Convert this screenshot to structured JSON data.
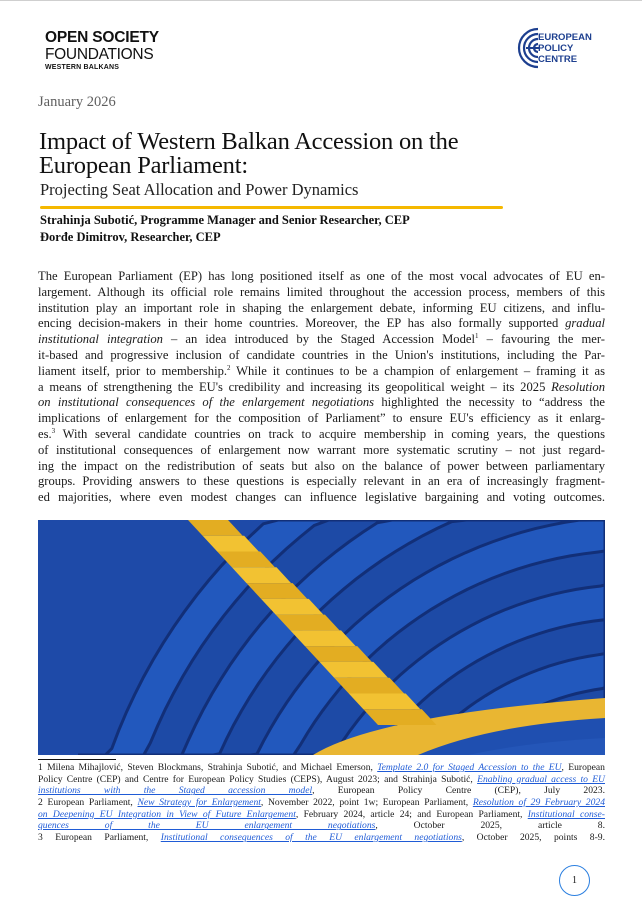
{
  "logos": {
    "osf": {
      "line1": "OPEN SOCIETY",
      "line2": "FOUNDATIONS",
      "line3": "WESTERN BALKANS"
    },
    "epc": {
      "line1": "EUROPEAN",
      "line2": "POLICY",
      "line3": "CENTRE",
      "color": "#1d3f8f"
    }
  },
  "date": "January 2026",
  "title": {
    "line1": "Impact of Western Balkan Accession on the",
    "line2": "European Parliament:"
  },
  "subtitle": "Projecting Seat Allocation and Power Dynamics",
  "accent_color": "#f5b800",
  "authors": [
    "Strahinja Subotić, Programme Manager and Senior Researcher, CEP",
    "Đorđe Dimitrov, Researcher, CEP"
  ],
  "body_lines": [
    [
      {
        "t": "The European Parliament (EP) has long positioned itself as one of the most vocal advocates of EU en-"
      }
    ],
    [
      {
        "t": "largement. Although its official role remains limited throughout the accession process, members of this"
      }
    ],
    [
      {
        "t": "institution play an important role in shaping the enlargement debate, informing EU citizens, and influ-"
      }
    ],
    [
      {
        "t": "encing decision-makers in their home countries. Moreover, the EP has also formally supported "
      },
      {
        "t": "gradual",
        "s": "i"
      }
    ],
    [
      {
        "t": "institutional integration",
        "s": "i"
      },
      {
        "t": " – an idea introduced by the Staged Accession Model"
      },
      {
        "t": "1",
        "s": "sup"
      },
      {
        "t": " – favouring the mer-"
      }
    ],
    [
      {
        "t": "it-based and progressive inclusion of candidate countries in the Union's institutions, including the Par-"
      }
    ],
    [
      {
        "t": "liament itself, prior to membership."
      },
      {
        "t": "2",
        "s": "sup"
      },
      {
        "t": " While it continues to be a champion of enlargement – framing it as"
      }
    ],
    [
      {
        "t": "a means of strengthening the EU's credibility and increasing its geopolitical weight – its 2025 "
      },
      {
        "t": "Resolution",
        "s": "i"
      }
    ],
    [
      {
        "t": "on institutional consequences of the enlargement negotiations",
        "s": "i"
      },
      {
        "t": " highlighted the necessity to “address the"
      }
    ],
    [
      {
        "t": "implications of enlargement for the composition of Parliament” to ensure EU's efficiency as it enlarg-"
      }
    ],
    [
      {
        "t": "es."
      },
      {
        "t": "3",
        "s": "sup"
      },
      {
        "t": " With several candidate countries on track to acquire membership in coming years, the questions"
      }
    ],
    [
      {
        "t": "of institutional consequences of enlargement now warrant more systematic scrutiny – not just regard-"
      }
    ],
    [
      {
        "t": "ing the impact on the redistribution of seats but also on the balance of power between parliamentary"
      }
    ],
    [
      {
        "t": "groups. Providing answers to these questions is especially relevant in an era of increasingly fragment-"
      }
    ],
    [
      {
        "t": "ed majorities, where even modest changes can influence legislative bargaining and voting outcomes."
      }
    ]
  ],
  "footnote_lines": [
    [
      {
        "t": "1  Milena Mihajlović, Steven Blockmans, Strahinja Subotić, and Michael Emerson, "
      },
      {
        "t": "Template 2.0 for Staged Accession to the EU",
        "s": "a"
      },
      {
        "t": ", European"
      }
    ],
    [
      {
        "t": "Policy Centre (CEP) and Centre for European Policy Studies (CEPS), August 2023; and Strahinja Subotić, "
      },
      {
        "t": "Enabling gradual access to EU",
        "s": "a"
      }
    ],
    [
      {
        "t": "institutions with the Staged accession model",
        "s": "a"
      },
      {
        "t": ", European Policy Centre (CEP), July 2023."
      }
    ],
    [
      {
        "t": "2  European Parliament, "
      },
      {
        "t": "New Strategy for Enlargement",
        "s": "a"
      },
      {
        "t": ", November 2022, point 1w; European Parliament, "
      },
      {
        "t": "Resolution of 29 February 2024",
        "s": "a"
      }
    ],
    [
      {
        "t": "on Deepening EU Integration in View of Future Enlargement",
        "s": "a"
      },
      {
        "t": ", February 2024, article 24; and European Parliament, "
      },
      {
        "t": "Institutional conse-",
        "s": "a"
      }
    ],
    [
      {
        "t": "quences of the EU enlargement negotiations",
        "s": "a"
      },
      {
        "t": ", October 2025, article 8."
      }
    ],
    [
      {
        "t": "3  European Parliament, "
      },
      {
        "t": "Institutional consequences of the EU enlargement negotiations",
        "s": "a"
      },
      {
        "t": ", October 2025, points 8-9."
      }
    ]
  ],
  "page_number": "1",
  "link_color": "#1f5bd6"
}
